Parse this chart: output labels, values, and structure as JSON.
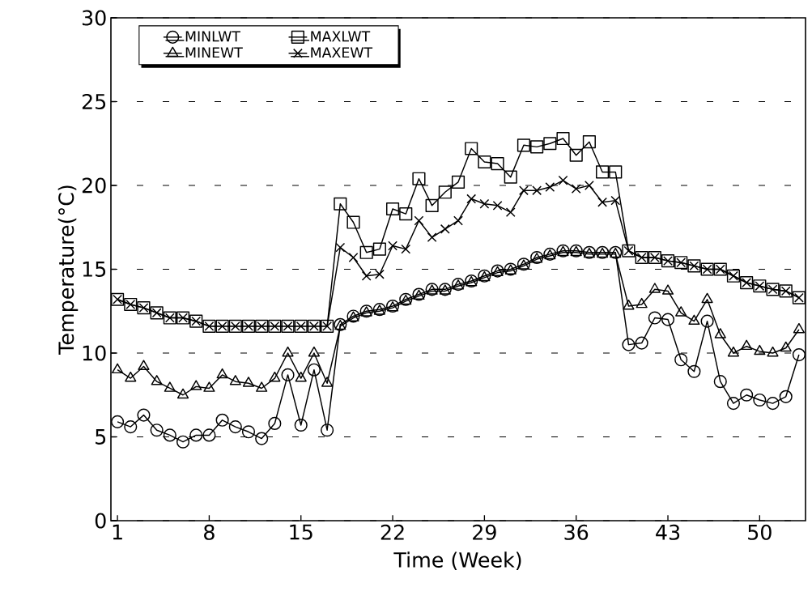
{
  "chart_data": {
    "type": "line",
    "xlabel": "Time (Week)",
    "ylabel": "Temperature(°C)",
    "x": [
      1,
      2,
      3,
      4,
      5,
      6,
      7,
      8,
      9,
      10,
      11,
      12,
      13,
      14,
      15,
      16,
      17,
      18,
      19,
      20,
      21,
      22,
      23,
      24,
      25,
      26,
      27,
      28,
      29,
      30,
      31,
      32,
      33,
      34,
      35,
      36,
      37,
      38,
      39,
      40,
      41,
      42,
      43,
      44,
      45,
      46,
      47,
      48,
      49,
      50,
      51,
      52,
      53
    ],
    "xlim": [
      0.5,
      53.5
    ],
    "xticks": [
      1,
      8,
      15,
      22,
      29,
      36,
      43,
      50
    ],
    "ylim": [
      0,
      30
    ],
    "yticks": [
      0,
      5,
      10,
      15,
      20,
      25,
      30
    ],
    "grid": "y",
    "legend": "top left",
    "line_style": "solid",
    "series": [
      {
        "name": "MINLWT",
        "color": "#000000",
        "marker": "circle",
        "values": [
          5.9,
          5.6,
          6.3,
          5.4,
          5.1,
          4.7,
          5.1,
          5.1,
          6.0,
          5.6,
          5.3,
          4.9,
          5.8,
          8.7,
          5.7,
          9.0,
          5.4,
          11.7,
          12.2,
          12.5,
          12.6,
          12.8,
          13.2,
          13.5,
          13.8,
          13.8,
          14.1,
          14.3,
          14.6,
          14.9,
          15.0,
          15.3,
          15.7,
          15.9,
          16.1,
          16.1,
          16.0,
          16.0,
          16.0,
          10.5,
          10.6,
          12.1,
          12.0,
          9.6,
          8.9,
          11.9,
          8.3,
          7.0,
          7.5,
          7.2,
          7.0,
          7.4,
          9.9
        ]
      },
      {
        "name": "MAXLWT",
        "color": "#000000",
        "marker": "square",
        "values": [
          13.2,
          12.9,
          12.7,
          12.4,
          12.1,
          12.1,
          11.9,
          11.6,
          11.6,
          11.6,
          11.6,
          11.6,
          11.6,
          11.6,
          11.6,
          11.6,
          11.6,
          18.9,
          17.8,
          16.0,
          16.2,
          18.6,
          18.3,
          20.4,
          18.8,
          19.6,
          20.2,
          22.2,
          21.4,
          21.3,
          20.5,
          22.4,
          22.3,
          22.5,
          22.8,
          21.8,
          22.6,
          20.8,
          20.8,
          16.1,
          15.7,
          15.7,
          15.5,
          15.4,
          15.2,
          15.0,
          15.0,
          14.6,
          14.2,
          14.0,
          13.8,
          13.7,
          13.3
        ]
      },
      {
        "name": "MINEWT",
        "color": "#000000",
        "marker": "triangle",
        "values": [
          9.0,
          8.5,
          9.2,
          8.3,
          7.9,
          7.5,
          8.0,
          7.9,
          8.7,
          8.3,
          8.2,
          7.9,
          8.5,
          10.0,
          8.5,
          10.0,
          8.2,
          11.6,
          12.1,
          12.4,
          12.5,
          12.7,
          13.1,
          13.4,
          13.7,
          13.7,
          14.0,
          14.2,
          14.5,
          14.8,
          14.9,
          15.2,
          15.6,
          15.8,
          16.0,
          16.0,
          15.9,
          15.9,
          15.9,
          12.8,
          12.9,
          13.8,
          13.7,
          12.4,
          11.9,
          13.2,
          11.1,
          10.0,
          10.4,
          10.1,
          10.0,
          10.3,
          11.4
        ]
      },
      {
        "name": "MAXEWT",
        "color": "#000000",
        "marker": "cross",
        "values": [
          13.2,
          12.9,
          12.7,
          12.4,
          12.1,
          12.1,
          11.9,
          11.6,
          11.6,
          11.6,
          11.6,
          11.6,
          11.6,
          11.6,
          11.6,
          11.6,
          11.6,
          16.3,
          15.7,
          14.6,
          14.7,
          16.4,
          16.2,
          17.9,
          16.9,
          17.4,
          17.9,
          19.2,
          18.9,
          18.8,
          18.4,
          19.7,
          19.7,
          19.9,
          20.3,
          19.8,
          20.0,
          19.0,
          19.1,
          16.1,
          15.7,
          15.7,
          15.5,
          15.4,
          15.2,
          15.0,
          15.0,
          14.6,
          14.2,
          14.0,
          13.8,
          13.7,
          13.3
        ]
      }
    ]
  }
}
